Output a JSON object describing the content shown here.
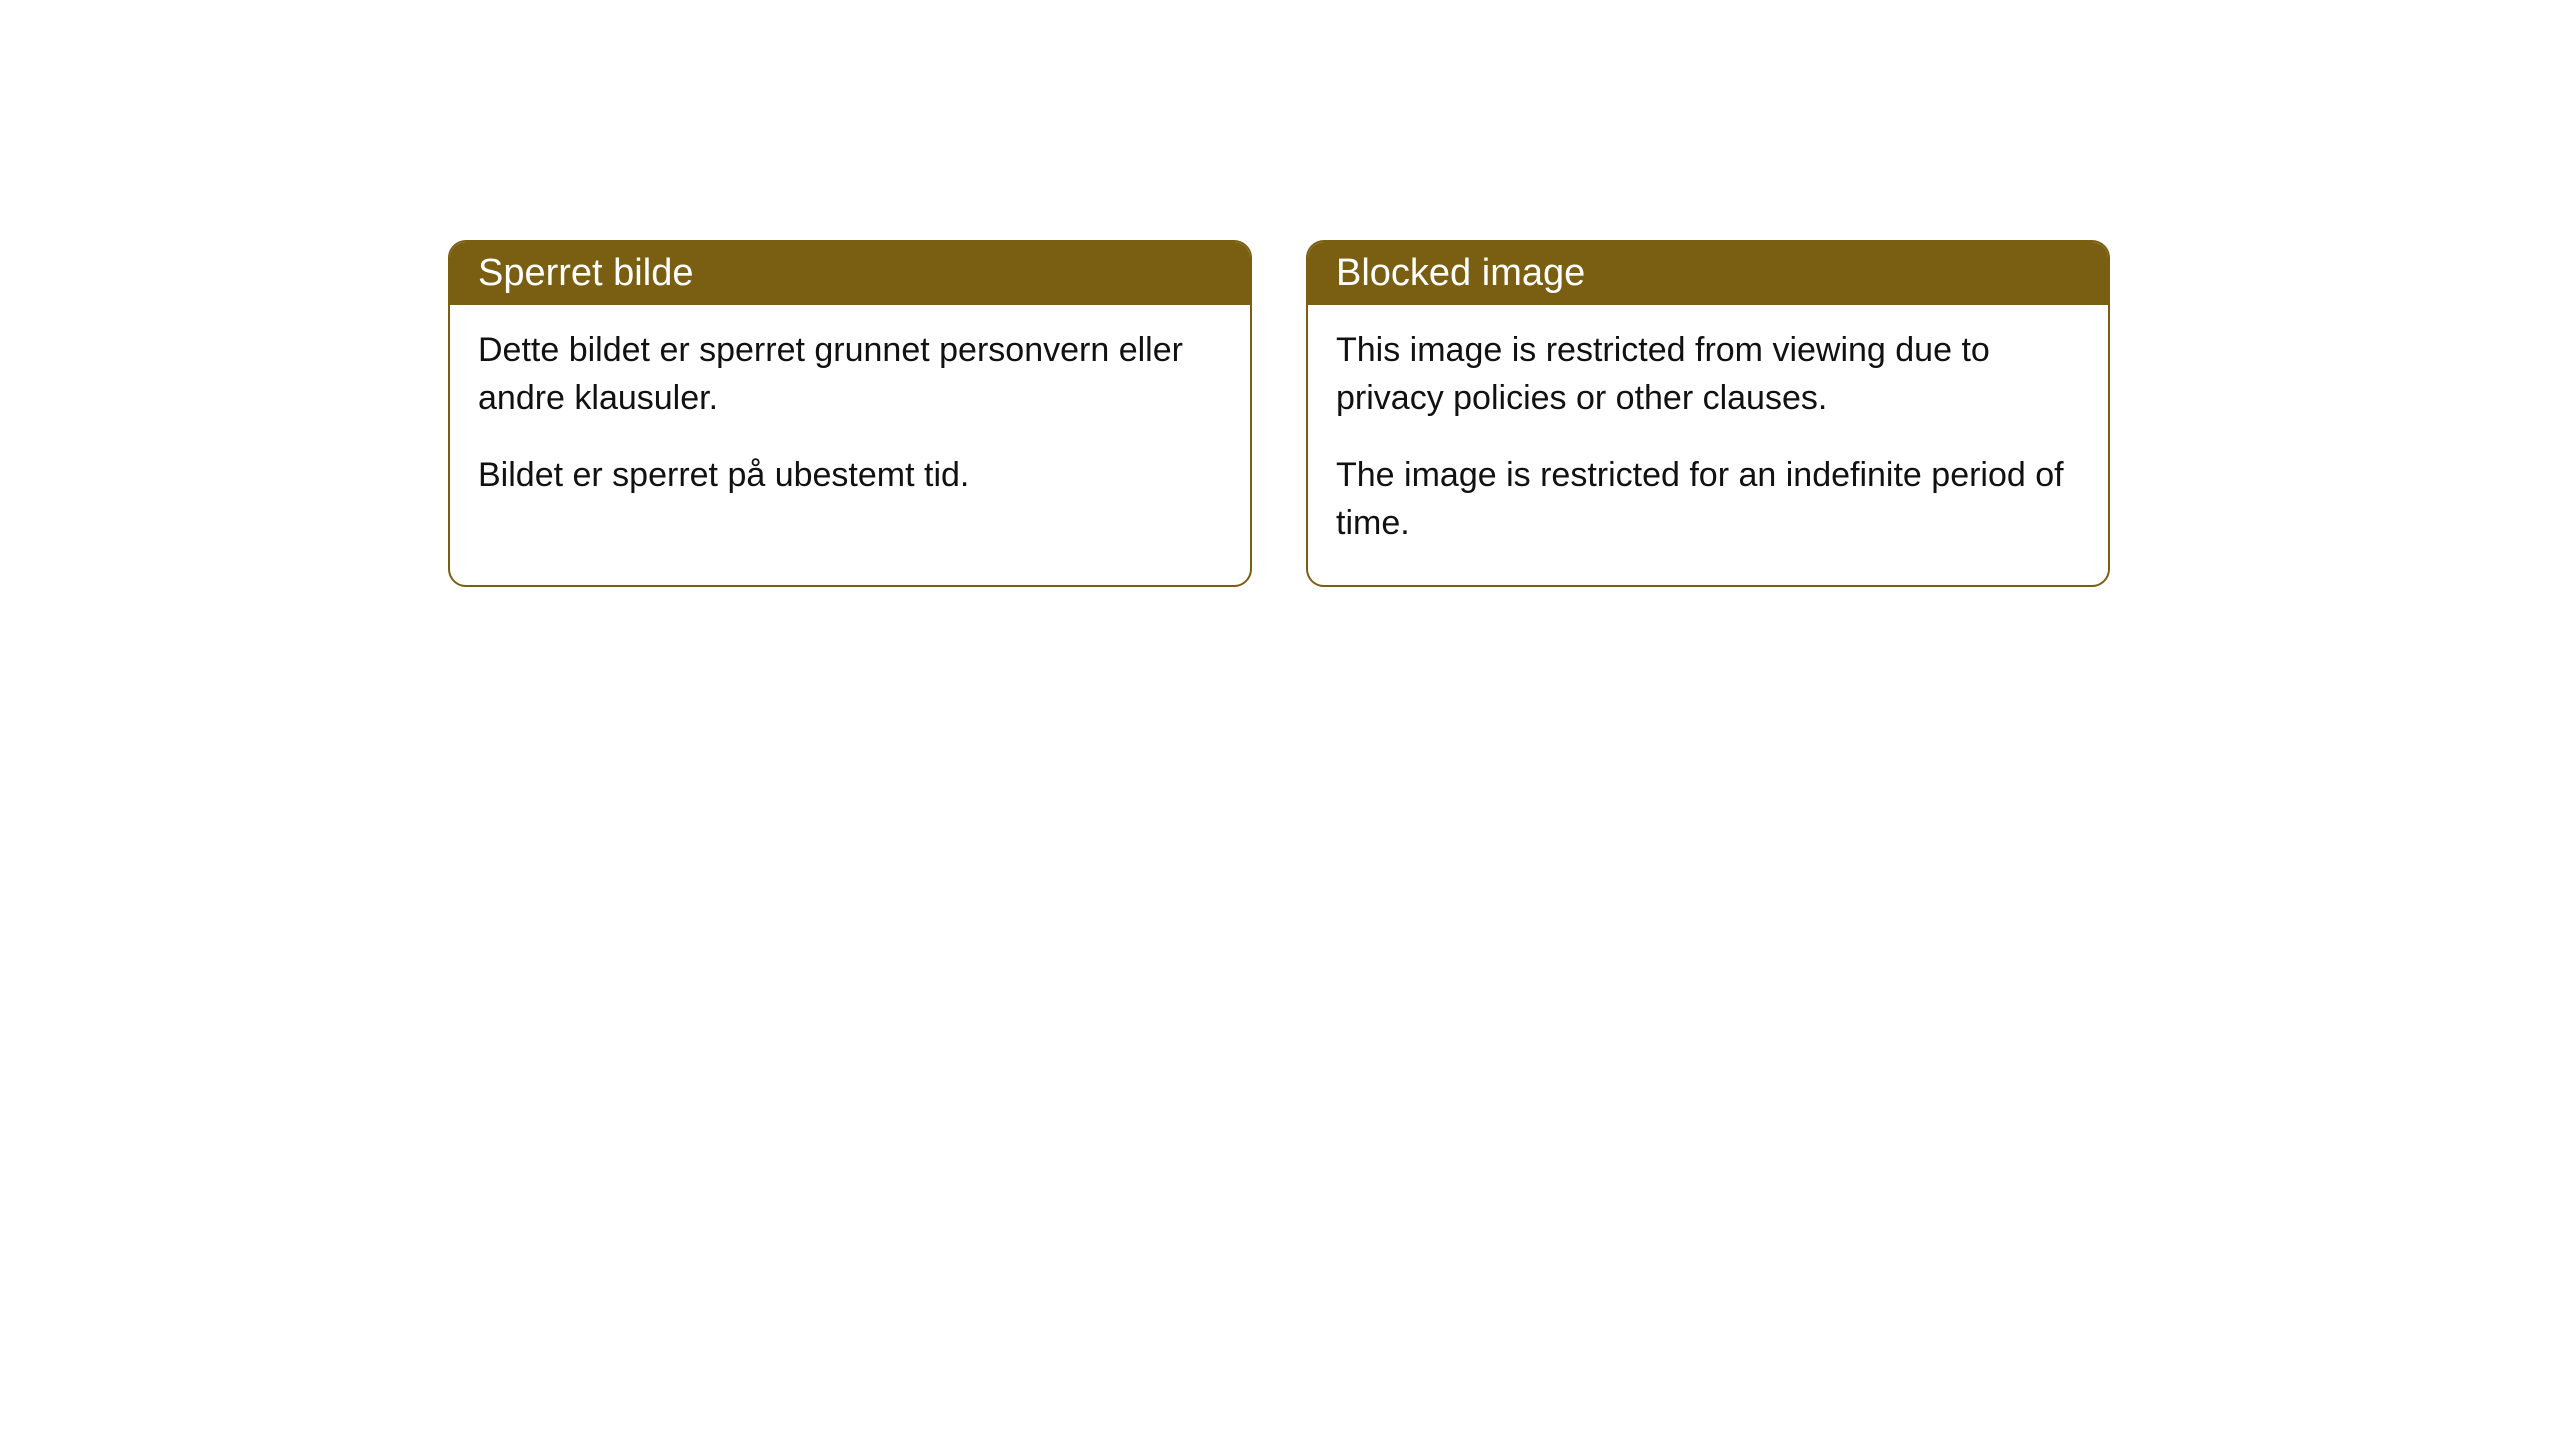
{
  "cards": [
    {
      "title": "Sperret bilde",
      "paragraph1": "Dette bildet er sperret grunnet personvern eller andre klausuler.",
      "paragraph2": "Bildet er sperret på ubestemt tid."
    },
    {
      "title": "Blocked image",
      "paragraph1": "This image is restricted from viewing due to privacy policies or other clauses.",
      "paragraph2": "The image is restricted for an indefinite period of time."
    }
  ],
  "style": {
    "header_bg_color": "#7a5f13",
    "header_text_color": "#ffffff",
    "border_color": "#7a5f13",
    "body_text_color": "#111111",
    "card_bg_color": "#ffffff",
    "border_radius": 18,
    "header_fontsize": 38,
    "body_fontsize": 34
  }
}
